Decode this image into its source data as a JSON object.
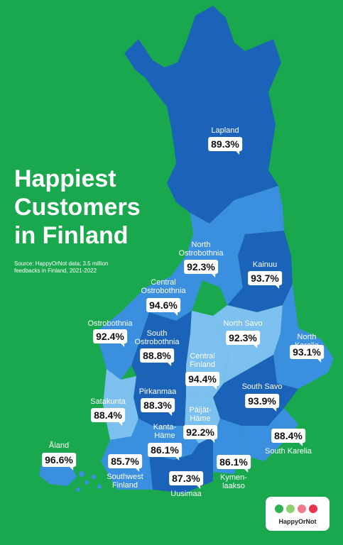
{
  "title_lines": [
    "Happiest",
    "Customers",
    "in Finland"
  ],
  "source": "Source: HappyOrNot data; 3.5 million feedbacks in Finland, 2021-2022",
  "colors": {
    "background": "#1aa84e",
    "dark_region": "#1b63b8",
    "mid_region": "#3a8fdf",
    "light_region": "#7cc0ef",
    "label_bg": "#ffffff"
  },
  "regions": [
    {
      "name": "Lapland",
      "value": "89.3%"
    },
    {
      "name": "North\nOstrobothnia",
      "value": "92.3%"
    },
    {
      "name": "Kainuu",
      "value": "93.7%"
    },
    {
      "name": "Central\nOstrobothnia",
      "value": "94.6%"
    },
    {
      "name": "Ostrobothnia",
      "value": "92.4%"
    },
    {
      "name": "South\nOstrobothnia",
      "value": "88.8%"
    },
    {
      "name": "North Savo",
      "value": "92.3%"
    },
    {
      "name": "North Karelia",
      "value": "93.1%"
    },
    {
      "name": "Central\nFinland",
      "value": "94.4%"
    },
    {
      "name": "Pirkanmaa",
      "value": "88.3%"
    },
    {
      "name": "Satakunta",
      "value": "88.4%"
    },
    {
      "name": "South Savo",
      "value": "93.9%"
    },
    {
      "name": "Päijät-\nHäme",
      "value": "92.2%"
    },
    {
      "name": "Kanta-\nHäme",
      "value": "86.1%"
    },
    {
      "name": "South Karelia",
      "value": "88.4%"
    },
    {
      "name": "Åland",
      "value": "96.6%"
    },
    {
      "name": "Southwest\nFinland",
      "value": "85.7%"
    },
    {
      "name": "Uusimaa",
      "value": "87.3%"
    },
    {
      "name": "Kymen-\nlaakso",
      "value": "86.1%"
    }
  ],
  "logo": {
    "text": "HappyOrNot",
    "face_colors": [
      "#2bb24c",
      "#8fd06f",
      "#f07a8a",
      "#e8344e"
    ]
  }
}
